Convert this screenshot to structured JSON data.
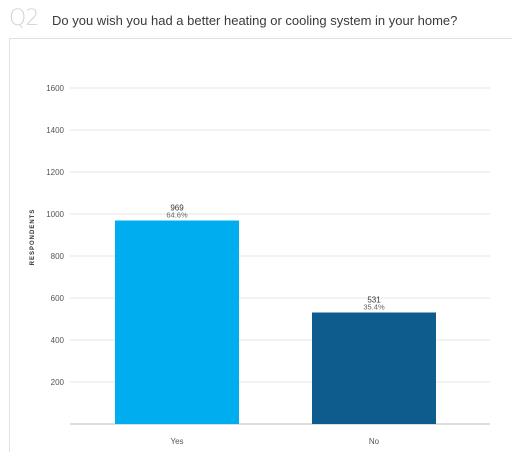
{
  "question": {
    "number": "Q2",
    "title": "Do you wish you had a better heating or cooling system in your home?"
  },
  "chart_data": {
    "type": "bar",
    "categories": [
      "Yes",
      "No"
    ],
    "values": [
      969,
      531
    ],
    "percent_labels": [
      "64.6%",
      "35.4%"
    ],
    "value_labels": [
      "969",
      "531"
    ],
    "ylabel": "RESPONDENTS",
    "ylim": [
      0,
      1800
    ],
    "yticks": [
      200,
      400,
      600,
      800,
      1000,
      1200,
      1400,
      1600
    ],
    "grid": true,
    "colors": [
      "#00aeef",
      "#0e5b8e"
    ]
  }
}
